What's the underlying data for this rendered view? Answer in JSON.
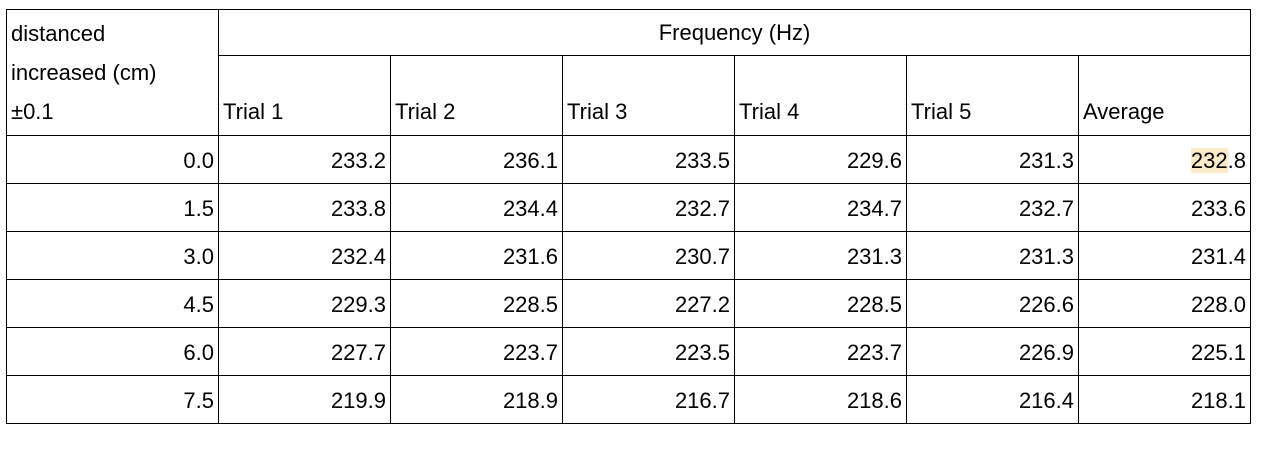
{
  "table": {
    "row_label_header": [
      "distanced",
      "increased (cm)",
      "±0.1"
    ],
    "group_header": "Frequency (Hz)",
    "column_headers": [
      "Trial 1",
      "Trial 2",
      "Trial 3",
      "Trial 4",
      "Trial 5",
      "Average"
    ],
    "rows": [
      {
        "distance": "0.0",
        "trial_1": "233.2",
        "trial_2": "236.1",
        "trial_3": "233.5",
        "trial_4": "229.6",
        "trial_5": "231.3",
        "average_highlighted": "232",
        "average_rest": ".8"
      },
      {
        "distance": "1.5",
        "trial_1": "233.8",
        "trial_2": "234.4",
        "trial_3": "232.7",
        "trial_4": "234.7",
        "trial_5": "232.7",
        "average": "233.6"
      },
      {
        "distance": "3.0",
        "trial_1": "232.4",
        "trial_2": "231.6",
        "trial_3": "230.7",
        "trial_4": "231.3",
        "trial_5": "231.3",
        "average": "231.4"
      },
      {
        "distance": "4.5",
        "trial_1": "229.3",
        "trial_2": "228.5",
        "trial_3": "227.2",
        "trial_4": "228.5",
        "trial_5": "226.6",
        "average": "228.0"
      },
      {
        "distance": "6.0",
        "trial_1": "227.7",
        "trial_2": "223.7",
        "trial_3": "223.5",
        "trial_4": "223.7",
        "trial_5": "226.9",
        "average": "225.1"
      },
      {
        "distance": "7.5",
        "trial_1": "219.9",
        "trial_2": "218.9",
        "trial_3": "216.7",
        "trial_4": "218.6",
        "trial_5": "216.4",
        "average": "218.1"
      }
    ]
  },
  "colors": {
    "highlight": "#fcebc8",
    "grid": "#000000"
  }
}
